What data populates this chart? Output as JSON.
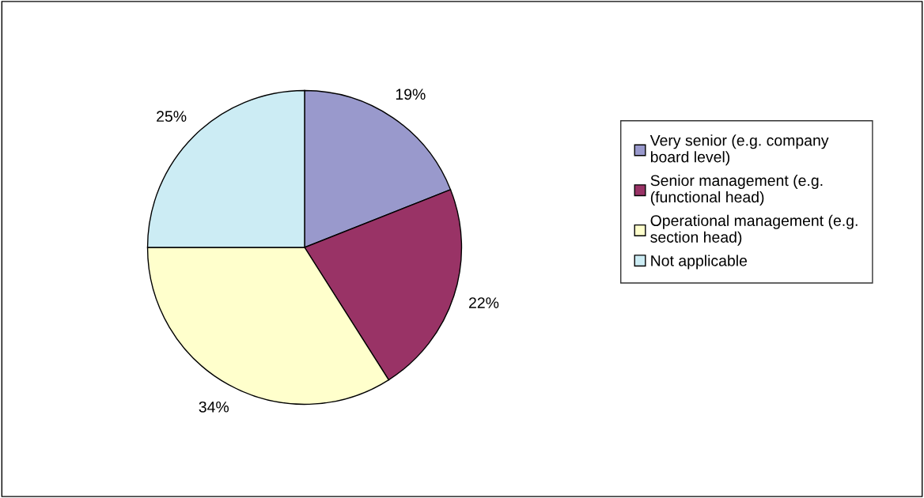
{
  "chart_data": {
    "type": "pie",
    "categories": [
      "Very senior (e.g. company\nboard level)",
      "Senior management (e.g.\n(functional head)",
      "Operational management (e.g.\nsection head)",
      "Not applicable"
    ],
    "values": [
      19,
      22,
      34,
      25
    ],
    "value_labels": [
      "19%",
      "22%",
      "34%",
      "25%"
    ],
    "colors": [
      "#9999cc",
      "#993366",
      "#ffffcc",
      "#ccecf4"
    ],
    "legend": "right"
  }
}
